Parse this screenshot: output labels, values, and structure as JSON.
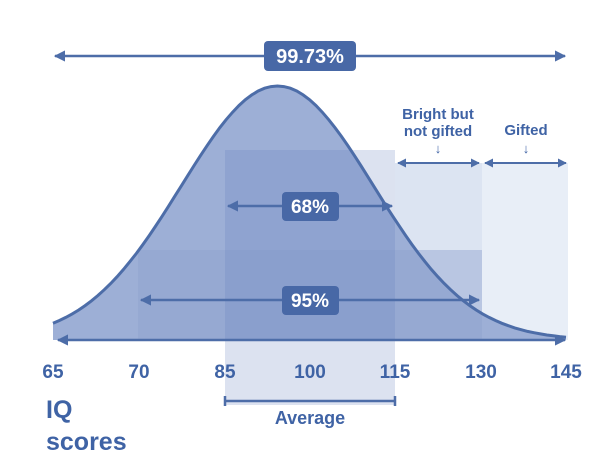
{
  "colors": {
    "curve_stroke": "#4D6DA8",
    "curve_fill": "#9DAFD6",
    "band_light": "#DCE4F2",
    "band_mid": "#C9D4EA",
    "band_outer_right": "#E8EEF7",
    "badge_bg": "#4868A6",
    "badge_text": "#FFFFFF",
    "label_text": "#3F63A5",
    "arrow": "#4D6DA8"
  },
  "badges": {
    "total": "99.73%",
    "sd1": "68%",
    "sd2": "95%"
  },
  "regions": {
    "bright": {
      "line1": "Bright but",
      "line2": "not gifted",
      "arrow": "↓"
    },
    "gifted": {
      "line1": "Gifted",
      "arrow": "↓"
    },
    "average": "Average"
  },
  "axis": {
    "ticks": [
      "65",
      "70",
      "85",
      "100",
      "115",
      "130",
      "145"
    ],
    "title_line1": "IQ",
    "title_line2": "scores"
  }
}
